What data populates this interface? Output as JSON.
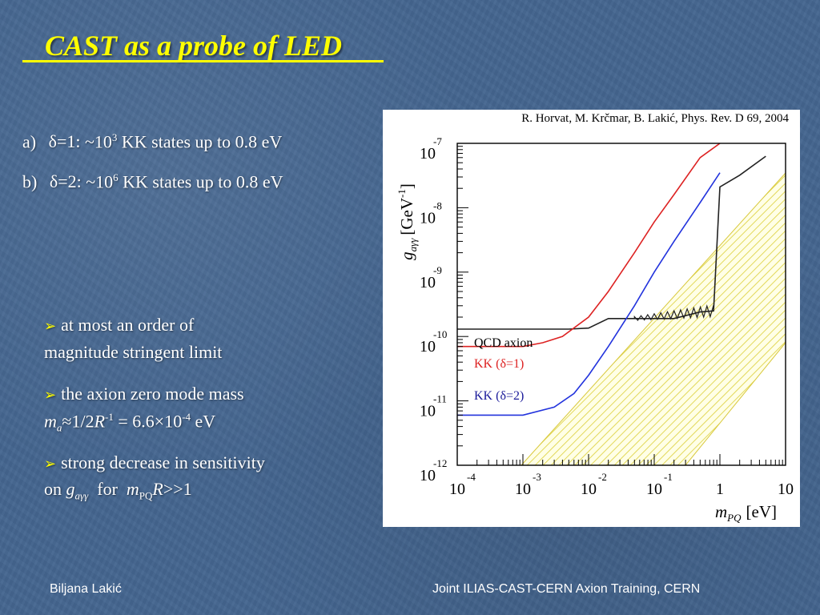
{
  "slide": {
    "title": "CAST as a probe of LED",
    "cases": [
      {
        "label": "a)",
        "delta": "δ=1:",
        "approx": "~10",
        "exp": "3",
        "text": "KK states up to 0.8 eV"
      },
      {
        "label": "b)",
        "delta": "δ=2:",
        "approx": "~10",
        "exp": "6",
        "text": "KK states up to 0.8 eV"
      }
    ],
    "bullets": {
      "b1_l1": "at most an order of",
      "b1_l2": "magnitude stringent limit",
      "b2_l1": "the axion zero mode mass",
      "b2_m": "m",
      "b2_a": "a",
      "b2_approx": "≈1/2",
      "b2_R": "R",
      "b2_sup1": "-1",
      "b2_eq": " = 6.6×10",
      "b2_sup2": "-4",
      "b2_unit": " eV",
      "b3_l1": "strong decrease in sensitivity",
      "b3_on": "on ",
      "b3_g": "g",
      "b3_gsub": "aγγ",
      "b3_for": "  for  ",
      "b3_m": "m",
      "b3_msub": "PQ",
      "b3_R": "R",
      "b3_tail": ">>1"
    },
    "arrow_glyph": "➢",
    "footer_left": "Biljana Lakić",
    "footer_right": "Joint ILIAS-CAST-CERN Axion Training, CERN",
    "colors": {
      "title": "#ffff00",
      "background": "#44658f",
      "text": "#ffffff"
    }
  },
  "figure": {
    "citation": "R. Horvat, M. Krčmar, B. Lakić, Phys. Rev. D 69, 2004",
    "ylabel": "g",
    "ylabel_sub": "aγγ",
    "yunit": "[GeV",
    "yunit_sup": "-1",
    "yunit_close": "]",
    "xlabel": "m",
    "xlabel_sub": "PQ",
    "xunit": "[eV]",
    "yticks": [
      {
        "base": "10",
        "exp": "-7"
      },
      {
        "base": "10",
        "exp": "-8"
      },
      {
        "base": "10",
        "exp": "-9"
      },
      {
        "base": "10",
        "exp": "-10"
      },
      {
        "base": "10",
        "exp": "-11"
      },
      {
        "base": "10",
        "exp": "-12"
      }
    ],
    "xticks": [
      {
        "base": "10",
        "exp": "-4"
      },
      {
        "base": "10",
        "exp": "-3"
      },
      {
        "base": "10",
        "exp": "-2"
      },
      {
        "base": "10",
        "exp": "-1"
      },
      {
        "base": "1",
        "exp": ""
      },
      {
        "base": "10",
        "exp": ""
      }
    ],
    "legend": {
      "qcd": "QCD axion",
      "kk1": "KK (δ=1)",
      "kk2": "KK (δ=2)"
    },
    "colors": {
      "qcd": "#222222",
      "kk1": "#dd2222",
      "kk2": "#2233dd",
      "band": "#e8e05a",
      "legend_kk2": "#1b1b9a"
    }
  },
  "chart_data": {
    "type": "line",
    "xscale": "log",
    "yscale": "log",
    "xlabel": "m_PQ [eV]",
    "ylabel": "g_aγγ [GeV^-1]",
    "xlim": [
      0.0001,
      10
    ],
    "ylim": [
      1e-12,
      1e-07
    ],
    "series": [
      {
        "name": "QCD axion",
        "x": [
          0.0001,
          0.001,
          0.005,
          0.01,
          0.02,
          0.05,
          0.1,
          0.2,
          0.5,
          0.8,
          1.0,
          2.0,
          5.0
        ],
        "y": [
          1.3e-10,
          1.3e-10,
          1.3e-10,
          1.35e-10,
          1.9e-10,
          1.9e-10,
          1.9e-10,
          1.9e-10,
          2.4e-10,
          2.5e-10,
          2.1e-08,
          3.2e-08,
          6.3e-08
        ]
      },
      {
        "name": "KK (δ=1)",
        "x": [
          0.0001,
          0.001,
          0.002,
          0.004,
          0.01,
          0.02,
          0.05,
          0.1,
          0.2,
          0.5,
          1.0
        ],
        "y": [
          7e-11,
          7e-11,
          8e-11,
          1e-10,
          2e-10,
          5e-10,
          2e-09,
          6e-09,
          1.6e-08,
          6e-08,
          1e-07
        ]
      },
      {
        "name": "KK (δ=2)",
        "x": [
          0.0001,
          0.001,
          0.003,
          0.006,
          0.01,
          0.02,
          0.05,
          0.1,
          0.2,
          0.5,
          1.0
        ],
        "y": [
          6e-12,
          6e-12,
          8e-12,
          1.3e-11,
          2.5e-11,
          7e-11,
          3e-10,
          1e-09,
          3e-09,
          1.2e-08,
          3.5e-08
        ]
      }
    ]
  }
}
